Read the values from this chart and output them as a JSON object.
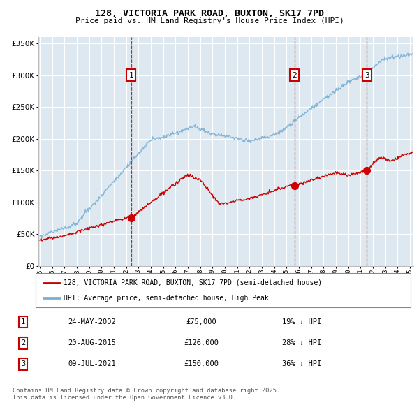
{
  "title": "128, VICTORIA PARK ROAD, BUXTON, SK17 7PD",
  "subtitle": "Price paid vs. HM Land Registry's House Price Index (HPI)",
  "legend_line1": "128, VICTORIA PARK ROAD, BUXTON, SK17 7PD (semi-detached house)",
  "legend_line2": "HPI: Average price, semi-detached house, High Peak",
  "footer": "Contains HM Land Registry data © Crown copyright and database right 2025.\nThis data is licensed under the Open Government Licence v3.0.",
  "transactions": [
    {
      "num": 1,
      "date": "24-MAY-2002",
      "price": 75000,
      "hpi_diff": "19% ↓ HPI",
      "year": 2002.4
    },
    {
      "num": 2,
      "date": "20-AUG-2015",
      "price": 126000,
      "hpi_diff": "28% ↓ HPI",
      "year": 2015.65
    },
    {
      "num": 3,
      "date": "09-JUL-2021",
      "price": 150000,
      "hpi_diff": "36% ↓ HPI",
      "year": 2021.52
    }
  ],
  "bg_color": "#dde8f0",
  "grid_color": "#ffffff",
  "red_color": "#cc0000",
  "blue_color": "#7bafd4",
  "ylim": [
    0,
    360000
  ],
  "xlim": [
    1994.9,
    2025.3
  ],
  "yticks": [
    0,
    50000,
    100000,
    150000,
    200000,
    250000,
    300000,
    350000
  ]
}
